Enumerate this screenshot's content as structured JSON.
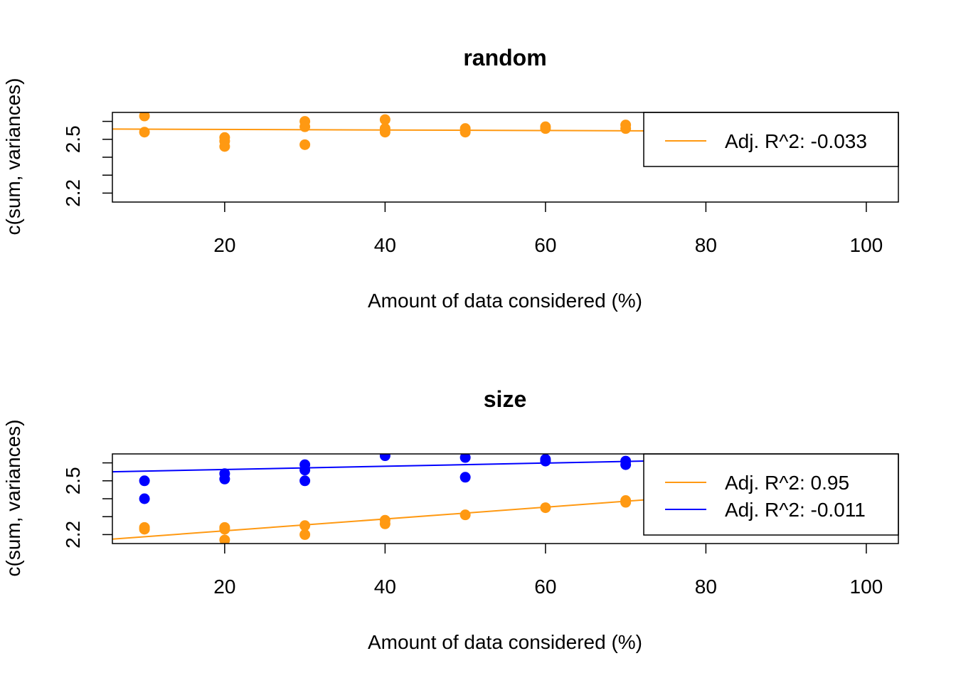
{
  "chart_data": [
    {
      "type": "scatter",
      "title": "random",
      "xlabel": "Amount of data considered (%)",
      "ylabel": "c(sum, variances)",
      "xlim": [
        6,
        104
      ],
      "ylim": [
        2.15,
        2.65
      ],
      "xticks": [
        20,
        40,
        60,
        80,
        100
      ],
      "yticks_labeled": [
        2.2,
        2.5
      ],
      "yticks_minor": [
        2.3,
        2.4,
        2.6
      ],
      "legend_position": "top-right",
      "series": [
        {
          "color": "#FF9912",
          "legend": "Adj. R^2: -0.033",
          "points": [
            [
              10,
              2.66
            ],
            [
              10,
              2.63
            ],
            [
              10,
              2.54
            ],
            [
              20,
              2.51
            ],
            [
              20,
              2.49
            ],
            [
              20,
              2.46
            ],
            [
              30,
              2.6
            ],
            [
              30,
              2.57
            ],
            [
              30,
              2.47
            ],
            [
              40,
              2.61
            ],
            [
              40,
              2.56
            ],
            [
              40,
              2.54
            ],
            [
              50,
              2.56
            ],
            [
              50,
              2.54
            ],
            [
              60,
              2.57
            ],
            [
              60,
              2.56
            ],
            [
              70,
              2.58
            ],
            [
              70,
              2.56
            ]
          ],
          "fit": {
            "intercept": 2.558,
            "slope": -0.00015
          }
        }
      ]
    },
    {
      "type": "scatter",
      "title": "size",
      "xlabel": "Amount of data considered (%)",
      "ylabel": "c(sum, variances)",
      "xlim": [
        6,
        104
      ],
      "ylim": [
        2.15,
        2.65
      ],
      "xticks": [
        20,
        40,
        60,
        80,
        100
      ],
      "yticks_labeled": [
        2.2,
        2.5
      ],
      "yticks_minor": [
        2.3,
        2.4,
        2.6
      ],
      "legend_position": "top-right",
      "series": [
        {
          "color": "#FF9912",
          "legend": "Adj. R^2: 0.95",
          "points": [
            [
              10,
              2.24
            ],
            [
              10,
              2.23
            ],
            [
              20,
              2.24
            ],
            [
              20,
              2.23
            ],
            [
              20,
              2.17
            ],
            [
              30,
              2.25
            ],
            [
              30,
              2.2
            ],
            [
              40,
              2.28
            ],
            [
              40,
              2.26
            ],
            [
              50,
              2.31
            ],
            [
              60,
              2.35
            ],
            [
              70,
              2.39
            ],
            [
              70,
              2.38
            ]
          ],
          "fit": {
            "intercept": 2.155,
            "slope": 0.0033
          }
        },
        {
          "color": "#0000FF",
          "legend": "Adj. R^2: -0.011",
          "points": [
            [
              10,
              2.5
            ],
            [
              10,
              2.4
            ],
            [
              20,
              2.54
            ],
            [
              20,
              2.51
            ],
            [
              30,
              2.59
            ],
            [
              30,
              2.56
            ],
            [
              30,
              2.5
            ],
            [
              40,
              2.64
            ],
            [
              50,
              2.63
            ],
            [
              50,
              2.52
            ],
            [
              60,
              2.62
            ],
            [
              60,
              2.61
            ],
            [
              70,
              2.61
            ],
            [
              70,
              2.59
            ]
          ],
          "fit": {
            "intercept": 2.545,
            "slope": 0.0009
          }
        }
      ]
    }
  ]
}
